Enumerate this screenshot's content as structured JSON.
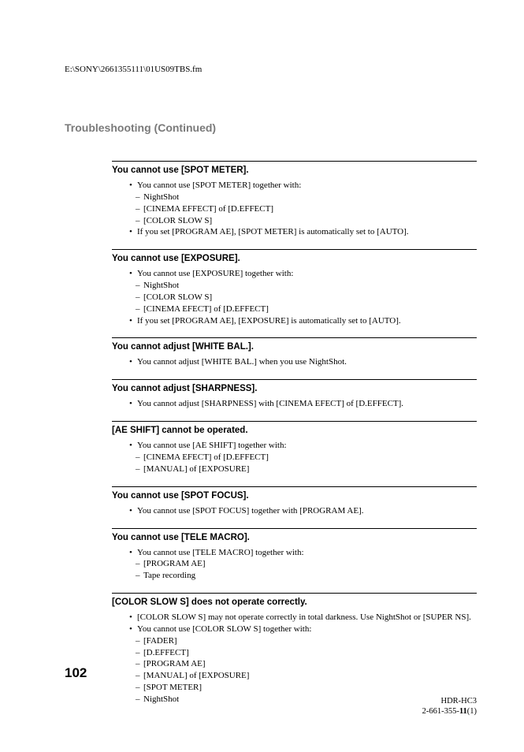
{
  "filepath": "E:\\SONY\\2661355111\\01US09TBS.fm",
  "heading": "Troubleshooting (Continued)",
  "sections": [
    {
      "title": "You cannot use [SPOT METER].",
      "items": [
        {
          "t": "b",
          "text": "You cannot use [SPOT METER] together with:"
        },
        {
          "t": "d",
          "text": "NightShot"
        },
        {
          "t": "d",
          "text": "[CINEMA EFFECT] of [D.EFFECT]"
        },
        {
          "t": "d",
          "text": "[COLOR SLOW S]"
        },
        {
          "t": "b",
          "text": "If you set [PROGRAM AE], [SPOT METER] is automatically set to [AUTO]."
        }
      ]
    },
    {
      "title": "You cannot use [EXPOSURE].",
      "items": [
        {
          "t": "b",
          "text": "You cannot use [EXPOSURE] together with:"
        },
        {
          "t": "d",
          "text": "NightShot"
        },
        {
          "t": "d",
          "text": "[COLOR SLOW S]"
        },
        {
          "t": "d",
          "text": "[CINEMA EFECT] of [D.EFFECT]"
        },
        {
          "t": "b",
          "text": "If you set [PROGRAM AE], [EXPOSURE] is automatically set to [AUTO]."
        }
      ]
    },
    {
      "title": "You cannot adjust [WHITE BAL.].",
      "items": [
        {
          "t": "b",
          "text": "You cannot adjust [WHITE BAL.] when you use NightShot."
        }
      ]
    },
    {
      "title": "You cannot adjust [SHARPNESS].",
      "items": [
        {
          "t": "b",
          "text": "You cannot adjust [SHARPNESS] with [CINEMA EFECT] of [D.EFFECT]."
        }
      ]
    },
    {
      "title": "[AE SHIFT] cannot be operated.",
      "items": [
        {
          "t": "b",
          "text": "You cannot use [AE SHIFT] together with:"
        },
        {
          "t": "d",
          "text": "[CINEMA EFECT] of [D.EFFECT]"
        },
        {
          "t": "d",
          "text": "[MANUAL] of [EXPOSURE]"
        }
      ]
    },
    {
      "title": "You cannot use [SPOT FOCUS].",
      "items": [
        {
          "t": "b",
          "text": "You cannot use [SPOT FOCUS] together with [PROGRAM AE]."
        }
      ]
    },
    {
      "title": "You cannot use [TELE MACRO].",
      "items": [
        {
          "t": "b",
          "text": "You cannot use [TELE MACRO] together with:"
        },
        {
          "t": "d",
          "text": "[PROGRAM AE]"
        },
        {
          "t": "d",
          "text": "Tape recording"
        }
      ]
    },
    {
      "title": "[COLOR SLOW S] does not operate correctly.",
      "items": [
        {
          "t": "b",
          "text": "[COLOR SLOW S] may not operate correctly in total darkness. Use NightShot or [SUPER NS]."
        },
        {
          "t": "b",
          "text": "You cannot use [COLOR SLOW S] together with:"
        },
        {
          "t": "d",
          "text": "[FADER]"
        },
        {
          "t": "d",
          "text": "[D.EFFECT]"
        },
        {
          "t": "d",
          "text": "[PROGRAM AE]"
        },
        {
          "t": "d",
          "text": "[MANUAL] of [EXPOSURE]"
        },
        {
          "t": "d",
          "text": "[SPOT METER]"
        },
        {
          "t": "d",
          "text": "NightShot"
        }
      ]
    }
  ],
  "page_number": "102",
  "footer_line1": "HDR-HC3",
  "footer_line2_a": "2-661-355-",
  "footer_line2_b": "11",
  "footer_line2_c": "(1)",
  "colors": {
    "heading_gray": "#7a7a7a",
    "text": "#000000",
    "bg": "#ffffff"
  },
  "fonts": {
    "body": "Times New Roman",
    "headings": "Arial",
    "body_size_pt": 11,
    "sec_title_size_pt": 11.5,
    "main_heading_size_pt": 14,
    "page_number_size_pt": 17
  }
}
